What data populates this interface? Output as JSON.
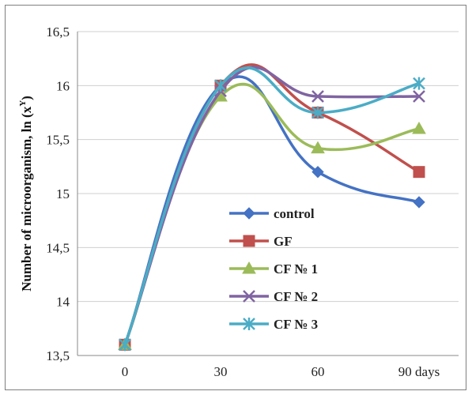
{
  "chart_data": {
    "type": "line",
    "title": "",
    "xlabel": "",
    "ylabel": "Number of microorganism, ln (x",
    "ylabel_sup": "Y",
    "ylabel_close": ")",
    "categories": [
      "0",
      "30",
      "60",
      "90 days"
    ],
    "x": [
      0,
      30,
      60,
      90
    ],
    "ylim": [
      13.5,
      16.5
    ],
    "yticks": [
      13.5,
      14,
      14.5,
      15,
      15.5,
      16,
      16.5
    ],
    "ytick_labels": [
      "13,5",
      "14",
      "14,5",
      "15",
      "15,5",
      "16",
      "16,5"
    ],
    "grid": "horizontal",
    "legend": "center-right",
    "series": [
      {
        "name": "control",
        "color": "#4472C4",
        "marker": "diamond",
        "values": [
          13.6,
          16.0,
          15.2,
          14.92
        ]
      },
      {
        "name": "GF",
        "color": "#C0504D",
        "marker": "square",
        "values": [
          13.6,
          16.0,
          15.75,
          15.2
        ]
      },
      {
        "name": "CF № 1",
        "color": "#9BBB59",
        "marker": "triangle",
        "values": [
          13.6,
          15.9,
          15.42,
          15.6
        ]
      },
      {
        "name": "CF № 2",
        "color": "#8064A2",
        "marker": "x",
        "values": [
          13.6,
          15.95,
          15.9,
          15.9
        ]
      },
      {
        "name": "CF № 3",
        "color": "#4BACC6",
        "marker": "star",
        "values": [
          13.6,
          16.0,
          15.75,
          16.02
        ]
      }
    ]
  }
}
